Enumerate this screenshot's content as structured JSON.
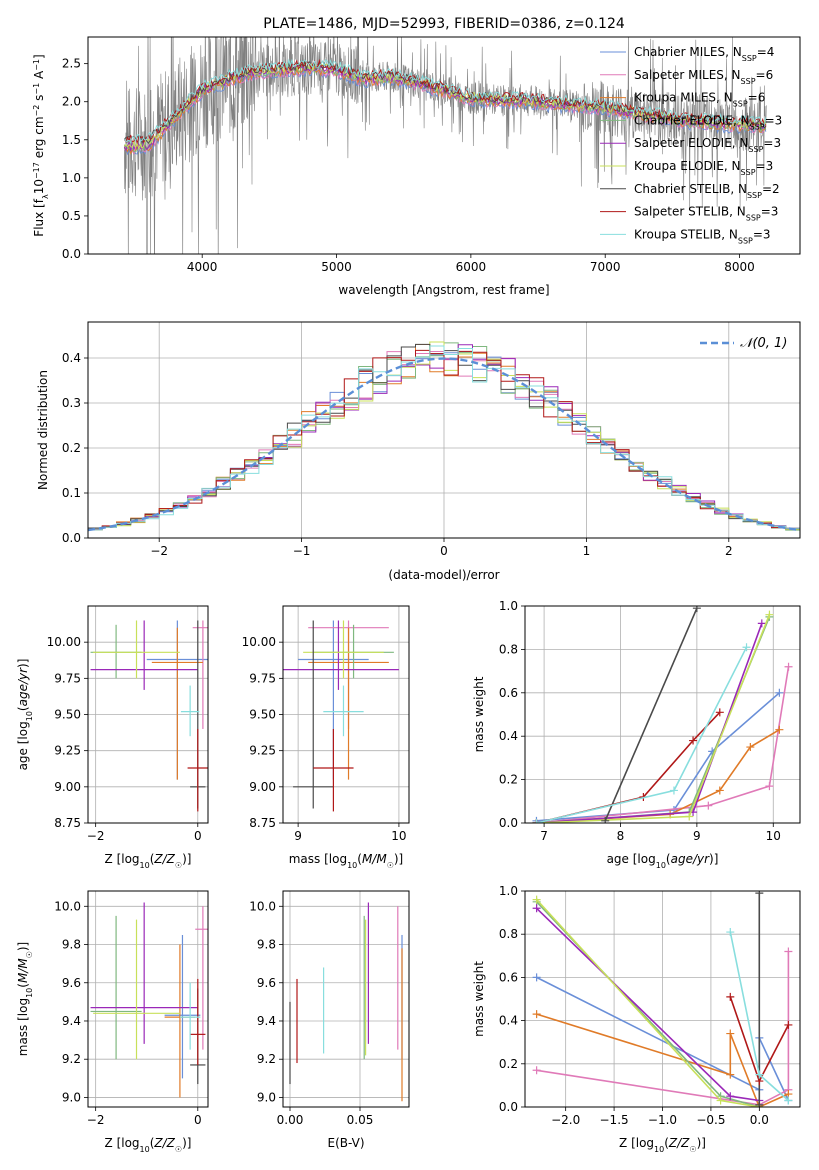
{
  "colors": {
    "Chabrier MILES": "#6a8fd8",
    "Salpeter MILES": "#e07ab8",
    "Kroupa MILES": "#e07b28",
    "Chabrier ELODIE": "#7fb87f",
    "Salpeter ELODIE": "#9a28b8",
    "Kroupa ELODIE": "#c8e05a",
    "Chabrier STELIB": "#4a4a4a",
    "Salpeter STELIB": "#b01818",
    "Kroupa STELIB": "#88dede",
    "data": "#808080",
    "normal": "#5b8fd6"
  },
  "chart_data": [
    {
      "id": "spectrum",
      "type": "line",
      "title": "PLATE=1486, MJD=52993, FIBERID=0386, z=0.124",
      "xlabel": "wavelength [Angstrom, rest frame]",
      "ylabel": "Flux [f_λ 10^-17 erg cm^-2 s^-1 A^-1]",
      "xlim": [
        3150,
        8450
      ],
      "ylim": [
        0,
        2.85
      ],
      "xticks": [
        "4000",
        "5000",
        "6000",
        "7000",
        "8000"
      ],
      "yticks": [
        "0.0",
        "0.5",
        "1.0",
        "1.5",
        "2.0",
        "2.5"
      ],
      "grid": false,
      "legend_position": "top-right",
      "series": [
        {
          "name": "Chabrier MILES, N_SSP=4",
          "color": "#6a8fd8"
        },
        {
          "name": "Salpeter MILES, N_SSP=6",
          "color": "#e07ab8"
        },
        {
          "name": "Kroupa MILES, N_SSP=6",
          "color": "#e07b28"
        },
        {
          "name": "Chabrier ELODIE, N_SSP=3",
          "color": "#7fb87f"
        },
        {
          "name": "Salpeter ELODIE, N_SSP=3",
          "color": "#9a28b8"
        },
        {
          "name": "Kroupa ELODIE, N_SSP=3",
          "color": "#c8e05a"
        },
        {
          "name": "Chabrier STELIB, N_SSP=2",
          "color": "#4a4a4a"
        },
        {
          "name": "Salpeter STELIB, N_SSP=3",
          "color": "#b01818"
        },
        {
          "name": "Kroupa STELIB, N_SSP=3",
          "color": "#88dede"
        }
      ],
      "continuum": {
        "x": [
          3400,
          3600,
          3800,
          4000,
          4200,
          4400,
          4600,
          4800,
          5000,
          5200,
          5400,
          5600,
          5800,
          6000,
          6200,
          6400,
          6600,
          6800,
          7000,
          7200,
          7400,
          7600,
          7800,
          8000,
          8200
        ],
        "y": [
          1.45,
          1.48,
          1.8,
          2.15,
          2.3,
          2.4,
          2.42,
          2.45,
          2.42,
          2.3,
          2.32,
          2.25,
          2.15,
          2.05,
          2.02,
          2.02,
          1.98,
          1.95,
          1.92,
          1.86,
          1.8,
          1.75,
          1.72,
          1.7,
          1.68
        ]
      }
    },
    {
      "id": "residuals",
      "type": "histogram",
      "xlabel": "(data-model)/error",
      "ylabel": "Normed distribution",
      "xlim": [
        -2.5,
        2.5
      ],
      "ylim": [
        0,
        0.48
      ],
      "xticks": [
        "−2",
        "−1",
        "0",
        "1",
        "2"
      ],
      "yticks": [
        "0.0",
        "0.1",
        "0.2",
        "0.3",
        "0.4"
      ],
      "grid": true,
      "legend": [
        {
          "label": "𝒩(0, 1)",
          "style": "dashed",
          "color": "#5b8fd6"
        }
      ],
      "legend_position": "top-right"
    },
    {
      "id": "age_vs_Z",
      "type": "errorbar",
      "xlabel": "Z [log₁₀(Z/Z☉)]",
      "ylabel": "age  [log₁₀(age/yr)]",
      "xlim": [
        -2.15,
        0.2
      ],
      "ylim": [
        8.75,
        10.25
      ],
      "xticks": [
        "−2",
        "0"
      ],
      "yticks": [
        "8.75",
        "9.00",
        "9.25",
        "9.50",
        "9.75",
        "10.00"
      ],
      "grid": true,
      "points": [
        {
          "model": "Chabrier MILES",
          "x": -0.4,
          "y": 9.88,
          "xerr": 0.6,
          "ylo": 9.05,
          "yhi": 10.15
        },
        {
          "model": "Salpeter MILES",
          "x": 0.1,
          "y": 10.1,
          "xerr": 0.2,
          "ylo": 9.4,
          "yhi": 10.15
        },
        {
          "model": "Kroupa MILES",
          "x": -0.4,
          "y": 9.86,
          "xerr": 0.5,
          "ylo": 9.05,
          "yhi": 10.1
        },
        {
          "model": "Chabrier ELODIE",
          "x": -1.6,
          "y": 9.93,
          "xerr": 0.5,
          "ylo": 9.75,
          "yhi": 10.12
        },
        {
          "model": "Salpeter ELODIE",
          "x": -1.05,
          "y": 9.81,
          "xerr": 1.05,
          "ylo": 9.67,
          "yhi": 10.15
        },
        {
          "model": "Kroupa ELODIE",
          "x": -1.2,
          "y": 9.93,
          "xerr": 0.85,
          "ylo": 9.75,
          "yhi": 10.15
        },
        {
          "model": "Chabrier STELIB",
          "x": 0.0,
          "y": 9.0,
          "xerr": 0.15,
          "ylo": 8.85,
          "yhi": 10.15
        },
        {
          "model": "Salpeter STELIB",
          "x": 0.0,
          "y": 9.13,
          "xerr": 0.2,
          "ylo": 8.83,
          "yhi": 9.4
        },
        {
          "model": "Kroupa STELIB",
          "x": -0.15,
          "y": 9.52,
          "xerr": 0.18,
          "ylo": 9.35,
          "yhi": 9.7
        }
      ]
    },
    {
      "id": "age_vs_mass",
      "type": "errorbar",
      "xlabel": "mass [log₁₀(M/M☉)]",
      "xlim": [
        8.85,
        10.1
      ],
      "ylim": [
        8.75,
        10.25
      ],
      "xticks": [
        "9",
        "10"
      ],
      "yticks": [
        "8.75",
        "9.00",
        "9.25",
        "9.50",
        "9.75",
        "10.00"
      ],
      "grid": true,
      "points": [
        {
          "model": "Chabrier MILES",
          "x": 9.35,
          "y": 9.88,
          "xerr": 0.35,
          "ylo": 9.05,
          "yhi": 10.15
        },
        {
          "model": "Salpeter MILES",
          "x": 9.5,
          "y": 10.1,
          "xerr": 0.4,
          "ylo": 9.4,
          "yhi": 10.15
        },
        {
          "model": "Kroupa MILES",
          "x": 9.5,
          "y": 9.86,
          "xerr": 0.4,
          "ylo": 9.05,
          "yhi": 10.1
        },
        {
          "model": "Chabrier ELODIE",
          "x": 9.55,
          "y": 9.93,
          "xerr": 0.4,
          "ylo": 9.75,
          "yhi": 10.12
        },
        {
          "model": "Salpeter ELODIE",
          "x": 9.4,
          "y": 9.81,
          "xerr": 0.6,
          "ylo": 9.67,
          "yhi": 10.15
        },
        {
          "model": "Kroupa ELODIE",
          "x": 9.45,
          "y": 9.93,
          "xerr": 0.4,
          "ylo": 9.75,
          "yhi": 10.15
        },
        {
          "model": "Chabrier STELIB",
          "x": 9.15,
          "y": 9.0,
          "xerr": 0.2,
          "ylo": 8.85,
          "yhi": 10.15
        },
        {
          "model": "Salpeter STELIB",
          "x": 9.35,
          "y": 9.13,
          "xerr": 0.2,
          "ylo": 8.83,
          "yhi": 9.4
        },
        {
          "model": "Kroupa STELIB",
          "x": 9.45,
          "y": 9.52,
          "xerr": 0.2,
          "ylo": 9.35,
          "yhi": 9.7
        }
      ]
    },
    {
      "id": "weight_vs_age",
      "type": "line",
      "xlabel": "age  [log₁₀(age/yr)]",
      "ylabel": "mass weight",
      "xlim": [
        6.75,
        10.35
      ],
      "ylim": [
        0,
        1.0
      ],
      "xticks": [
        "7",
        "8",
        "9",
        "10"
      ],
      "yticks": [
        "0.0",
        "0.2",
        "0.4",
        "0.6",
        "0.8",
        "1.0"
      ],
      "grid": true,
      "series": [
        {
          "model": "Chabrier MILES",
          "x": [
            6.9,
            8.7,
            9.2,
            10.08
          ],
          "y": [
            0.01,
            0.06,
            0.33,
            0.6
          ]
        },
        {
          "model": "Salpeter MILES",
          "x": [
            6.9,
            9.15,
            9.95,
            10.2
          ],
          "y": [
            0.0,
            0.08,
            0.17,
            0.72
          ]
        },
        {
          "model": "Kroupa MILES",
          "x": [
            6.9,
            8.65,
            9.3,
            9.7,
            10.08
          ],
          "y": [
            0.0,
            0.04,
            0.15,
            0.35,
            0.43
          ]
        },
        {
          "model": "Chabrier ELODIE",
          "x": [
            6.9,
            8.9,
            9.95
          ],
          "y": [
            0.0,
            0.05,
            0.95
          ]
        },
        {
          "model": "Salpeter ELODIE",
          "x": [
            6.9,
            8.95,
            9.85
          ],
          "y": [
            0.0,
            0.05,
            0.92
          ]
        },
        {
          "model": "Kroupa ELODIE",
          "x": [
            6.9,
            8.9,
            9.95
          ],
          "y": [
            0.0,
            0.03,
            0.96
          ]
        },
        {
          "model": "Chabrier STELIB",
          "x": [
            7.8,
            9.0
          ],
          "y": [
            0.01,
            0.99
          ]
        },
        {
          "model": "Salpeter STELIB",
          "x": [
            6.9,
            8.3,
            8.95,
            9.3
          ],
          "y": [
            0.0,
            0.12,
            0.38,
            0.51
          ]
        },
        {
          "model": "Kroupa STELIB",
          "x": [
            6.9,
            8.7,
            9.65
          ],
          "y": [
            0.0,
            0.15,
            0.81
          ]
        }
      ]
    },
    {
      "id": "mass_vs_Z",
      "type": "errorbar",
      "xlabel": "Z [log₁₀(Z/Z☉)]",
      "ylabel": "mass [log₁₀(M/M☉)]",
      "xlim": [
        -2.15,
        0.2
      ],
      "ylim": [
        8.95,
        10.08
      ],
      "xticks": [
        "−2",
        "0"
      ],
      "yticks": [
        "9.0",
        "9.2",
        "9.4",
        "9.6",
        "9.8",
        "10.0"
      ],
      "grid": true,
      "points": [
        {
          "model": "Chabrier MILES",
          "x": -0.3,
          "y": 9.43,
          "xerr": 0.35,
          "ylo": 9.1,
          "yhi": 9.85
        },
        {
          "model": "Salpeter MILES",
          "x": 0.1,
          "y": 9.88,
          "xerr": 0.15,
          "ylo": 9.25,
          "yhi": 10.0
        },
        {
          "model": "Kroupa MILES",
          "x": -0.35,
          "y": 9.42,
          "xerr": 0.3,
          "ylo": 9.0,
          "yhi": 9.8
        },
        {
          "model": "Chabrier ELODIE",
          "x": -1.6,
          "y": 9.45,
          "xerr": 0.5,
          "ylo": 9.2,
          "yhi": 9.95
        },
        {
          "model": "Salpeter ELODIE",
          "x": -1.05,
          "y": 9.47,
          "xerr": 1.05,
          "ylo": 9.28,
          "yhi": 10.02
        },
        {
          "model": "Kroupa ELODIE",
          "x": -1.2,
          "y": 9.44,
          "xerr": 0.85,
          "ylo": 9.2,
          "yhi": 9.93
        },
        {
          "model": "Chabrier STELIB",
          "x": 0.0,
          "y": 9.17,
          "xerr": 0.15,
          "ylo": 9.07,
          "yhi": 9.57
        },
        {
          "model": "Salpeter STELIB",
          "x": 0.0,
          "y": 9.33,
          "xerr": 0.15,
          "ylo": 9.17,
          "yhi": 9.62
        },
        {
          "model": "Kroupa STELIB",
          "x": -0.15,
          "y": 9.42,
          "xerr": 0.2,
          "ylo": 9.25,
          "yhi": 9.6
        }
      ]
    },
    {
      "id": "mass_vs_EBV",
      "type": "errorbar",
      "xlabel": "E(B-V)",
      "xlim": [
        -0.005,
        0.085
      ],
      "ylim": [
        8.95,
        10.08
      ],
      "xticks": [
        "0.00",
        "0.05"
      ],
      "yticks": [
        "9.0",
        "9.2",
        "9.4",
        "9.6",
        "9.8",
        "10.0"
      ],
      "grid": true,
      "points": [
        {
          "model": "Chabrier MILES",
          "x": 0.08,
          "ylo": 9.2,
          "yhi": 9.85
        },
        {
          "model": "Salpeter MILES",
          "x": 0.077,
          "ylo": 9.25,
          "yhi": 10.0
        },
        {
          "model": "Kroupa MILES",
          "x": 0.08,
          "ylo": 8.98,
          "yhi": 9.78
        },
        {
          "model": "Chabrier ELODIE",
          "x": 0.053,
          "ylo": 9.2,
          "yhi": 9.95
        },
        {
          "model": "Salpeter ELODIE",
          "x": 0.056,
          "ylo": 9.28,
          "yhi": 10.02
        },
        {
          "model": "Kroupa ELODIE",
          "x": 0.054,
          "ylo": 9.22,
          "yhi": 9.93
        },
        {
          "model": "Chabrier STELIB",
          "x": 0.0,
          "ylo": 9.07,
          "yhi": 9.5
        },
        {
          "model": "Salpeter STELIB",
          "x": 0.005,
          "ylo": 9.18,
          "yhi": 9.62
        },
        {
          "model": "Kroupa STELIB",
          "x": 0.024,
          "ylo": 9.23,
          "yhi": 9.68
        }
      ]
    },
    {
      "id": "weight_vs_Z",
      "type": "line",
      "xlabel": "Z [log₁₀(Z/Z☉)]",
      "ylabel": "mass weight",
      "xlim": [
        -2.42,
        0.42
      ],
      "ylim": [
        0,
        1.0
      ],
      "xticks": [
        "−2.0",
        "−1.5",
        "−1.0",
        "−0.5",
        "0.0"
      ],
      "yticks": [
        "0.0",
        "0.2",
        "0.4",
        "0.6",
        "0.8",
        "1.0"
      ],
      "grid": true,
      "series": [
        {
          "model": "Chabrier MILES",
          "x": [
            -2.3,
            0.0,
            0.0,
            0.3
          ],
          "y": [
            0.6,
            0.08,
            0.32,
            0.03
          ]
        },
        {
          "model": "Salpeter MILES",
          "x": [
            -2.3,
            0.0,
            0.3,
            0.3
          ],
          "y": [
            0.17,
            0.01,
            0.08,
            0.72
          ]
        },
        {
          "model": "Kroupa MILES",
          "x": [
            -2.3,
            -0.3,
            -0.3,
            0.0,
            0.3
          ],
          "y": [
            0.43,
            0.15,
            0.34,
            0.0,
            0.06
          ]
        },
        {
          "model": "Chabrier ELODIE",
          "x": [
            -2.3,
            -0.4,
            0.0
          ],
          "y": [
            0.95,
            0.05,
            0.0
          ]
        },
        {
          "model": "Salpeter ELODIE",
          "x": [
            -2.3,
            -0.3,
            0.0
          ],
          "y": [
            0.92,
            0.05,
            0.03
          ]
        },
        {
          "model": "Kroupa ELODIE",
          "x": [
            -2.3,
            -0.4,
            0.0
          ],
          "y": [
            0.96,
            0.03,
            0.0
          ]
        },
        {
          "model": "Chabrier STELIB",
          "x": [
            0.0,
            0.0
          ],
          "y": [
            0.99,
            0.01
          ]
        },
        {
          "model": "Salpeter STELIB",
          "x": [
            -0.3,
            0.0,
            0.3
          ],
          "y": [
            0.51,
            0.12,
            0.38
          ]
        },
        {
          "model": "Kroupa STELIB",
          "x": [
            -0.3,
            0.0,
            0.3
          ],
          "y": [
            0.81,
            0.15,
            0.03
          ]
        }
      ]
    }
  ]
}
